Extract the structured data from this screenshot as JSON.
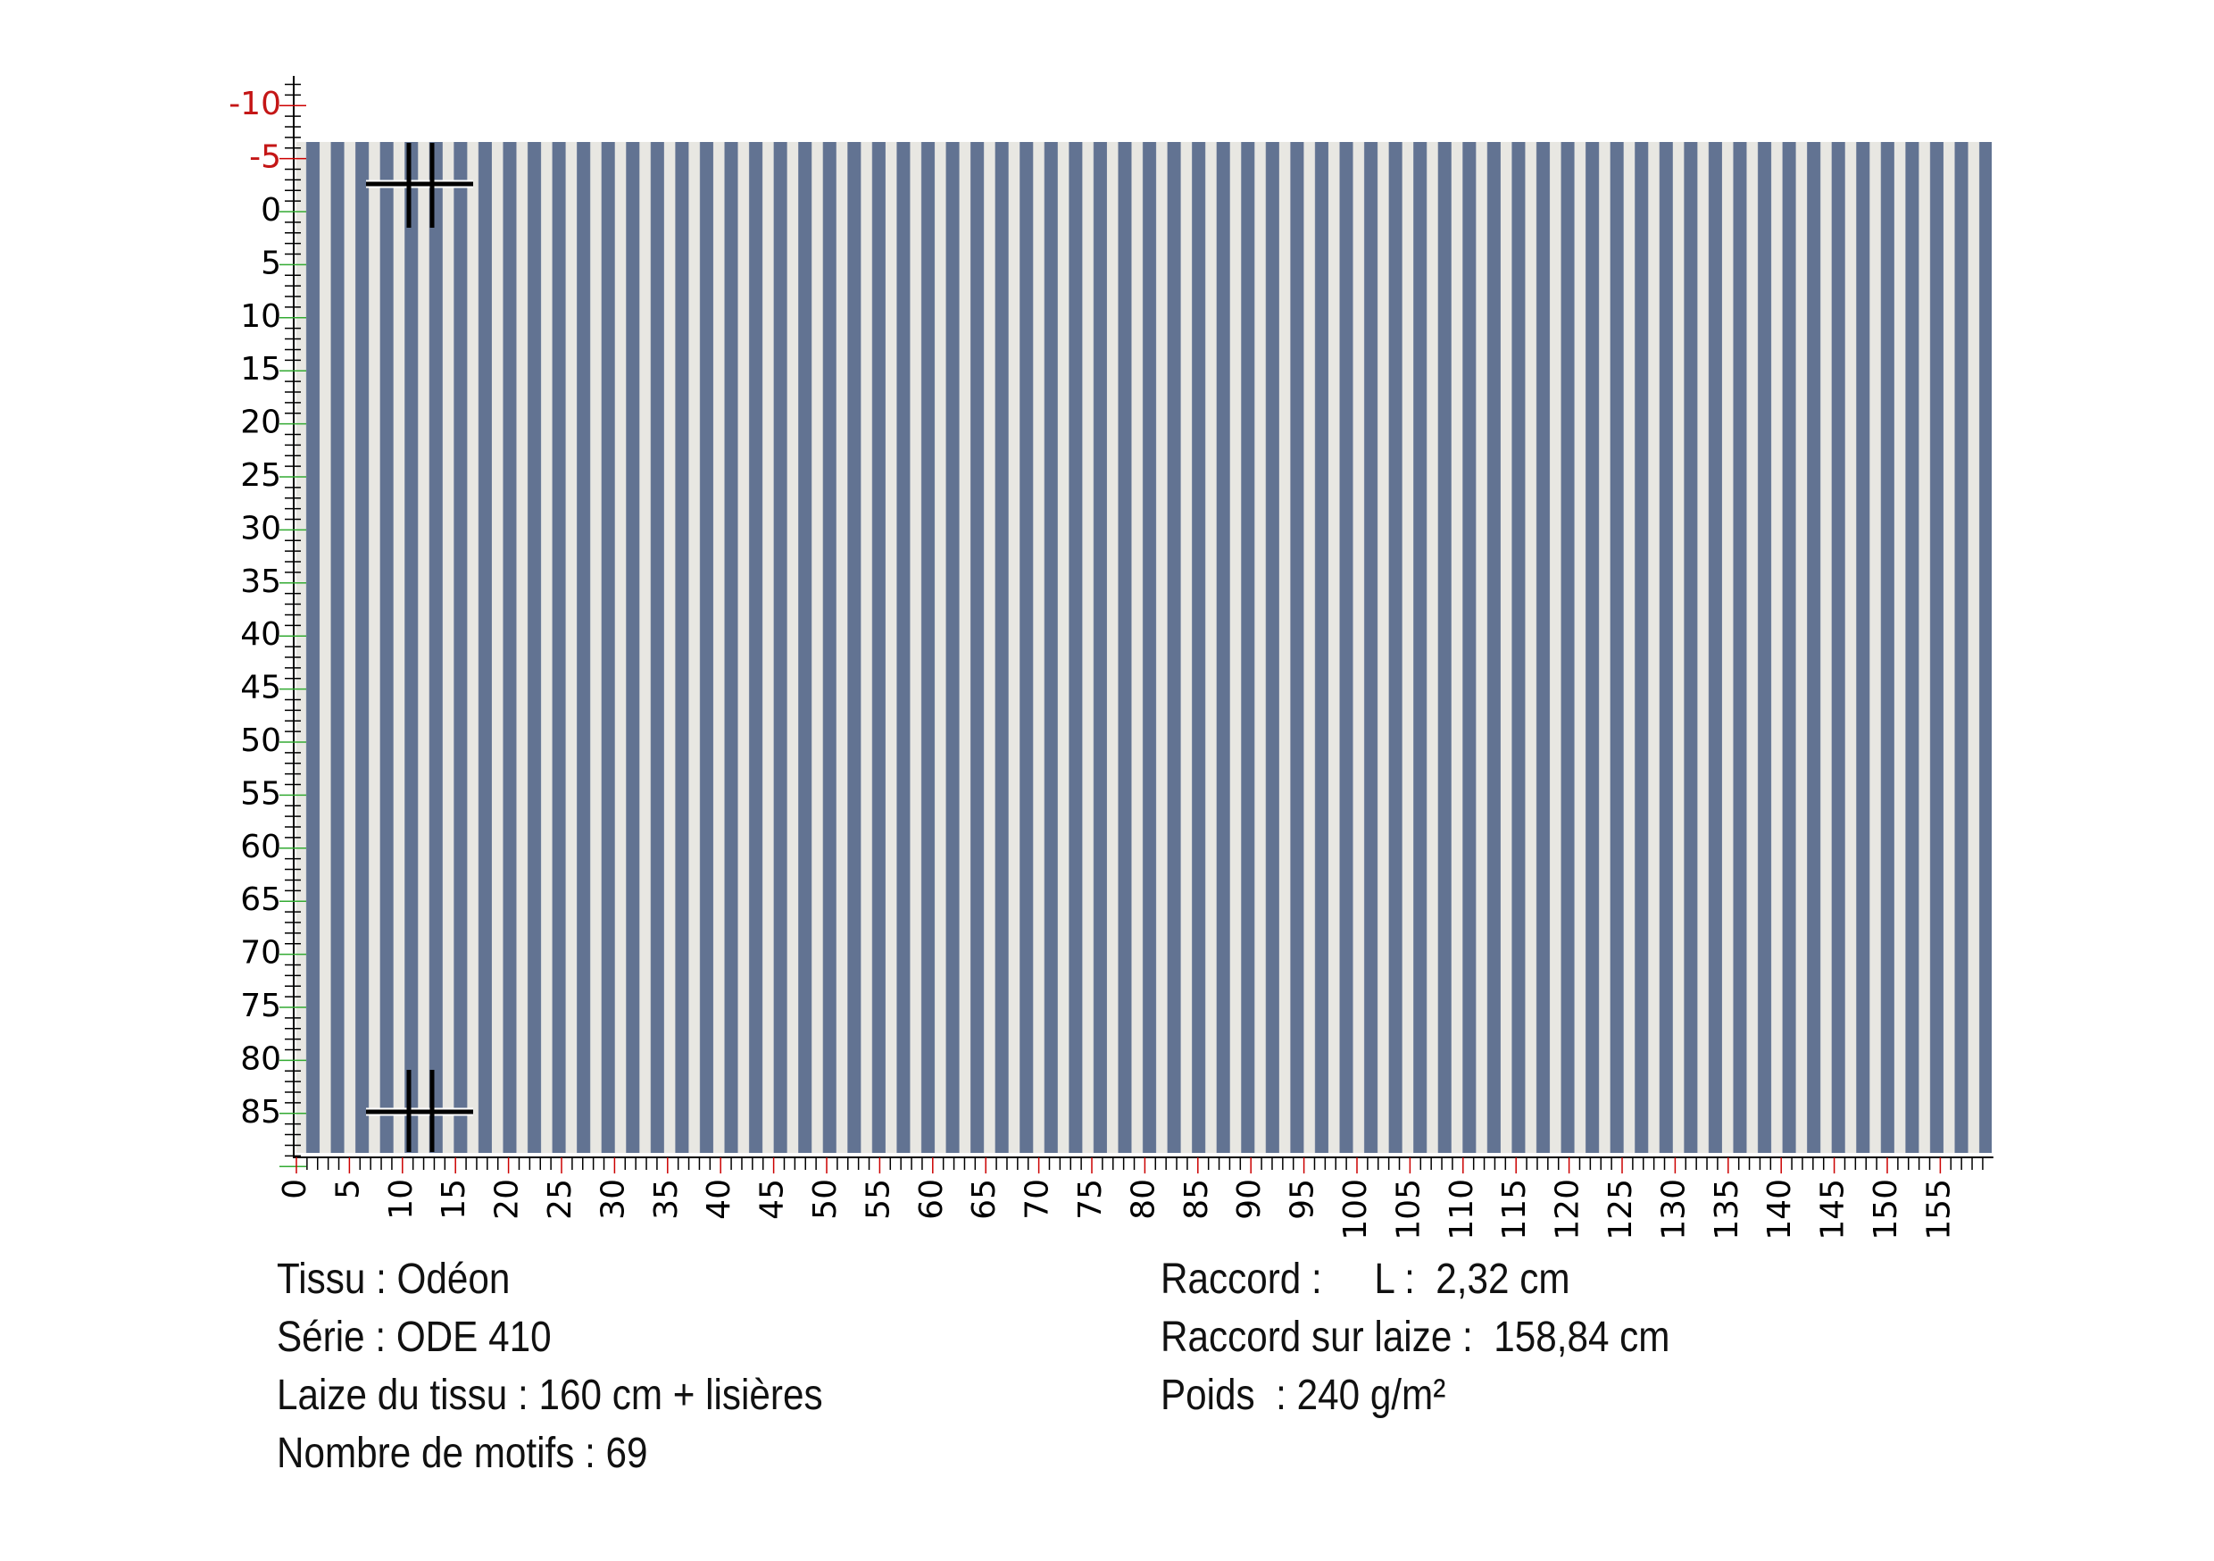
{
  "ruler": {
    "vertical": [
      -10,
      -5,
      0,
      5,
      10,
      15,
      20,
      25,
      30,
      35,
      40,
      45,
      50,
      55,
      60,
      65,
      70,
      75,
      80,
      85
    ],
    "horizontal": [
      0,
      5,
      10,
      15,
      20,
      25,
      30,
      35,
      40,
      45,
      50,
      55,
      60,
      65,
      70,
      75,
      80,
      85,
      90,
      95,
      100,
      105,
      110,
      115,
      120,
      125,
      130,
      135,
      140,
      145,
      150,
      155
    ]
  },
  "info": {
    "left": [
      "Tissu : Odéon",
      "Série : ODE 410",
      "Laize du tissu : 160 cm + lisières",
      "Nombre de motifs : 69"
    ],
    "right": [
      "Raccord :     L :  2,32 cm",
      "Raccord sur laize :  158,84 cm",
      "Poids  : 240 g/m²"
    ]
  }
}
